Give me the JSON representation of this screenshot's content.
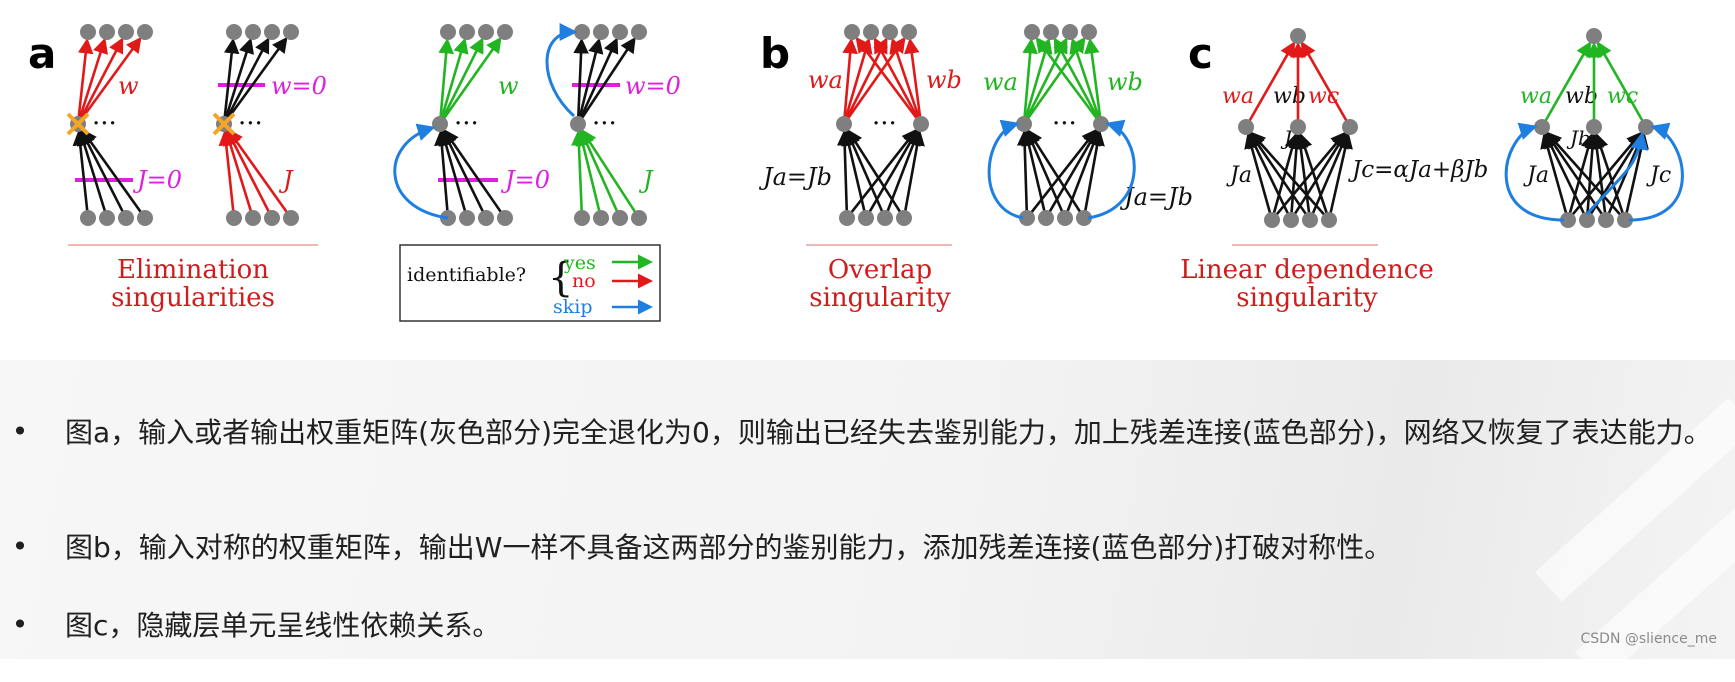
{
  "figure": {
    "panel_a": {
      "letter": "a",
      "label_w": "w",
      "label_w0": "w=0",
      "label_J0": "J=0",
      "label_J": "J",
      "label_w_green": "w",
      "label_w0_green": "w=0",
      "label_J0_green": "J=0",
      "label_J_green": "J",
      "caption_line1": "Elimination",
      "caption_line2": "singularities"
    },
    "legend": {
      "prefix": "identifiable?",
      "yes": "yes",
      "no": "no",
      "skip": "skip"
    },
    "panel_b": {
      "letter": "b",
      "label_wa": "wa",
      "label_wb": "wb",
      "label_eq": "Ja=Jb",
      "label_wa_green": "wa",
      "label_wb_green": "wb",
      "label_eq_right": "Ja=Jb",
      "caption_line1": "Overlap",
      "caption_line2": "singularity"
    },
    "panel_c": {
      "letter": "c",
      "label_wa": "wa",
      "label_wb": "wb",
      "label_wc": "wc",
      "label_Ja": "Ja",
      "label_Jb": "Jb",
      "label_eq": "Jc=αJa+βJb",
      "label_wa_green": "wa",
      "label_wb_green": "wb",
      "label_wc_green": "wc",
      "label_Ja_right": "Ja",
      "label_Jb_right": "Jb",
      "label_Jc_right": "Jc",
      "caption_line1": "Linear dependence",
      "caption_line2": "singularity"
    },
    "colors": {
      "red": "#e11919",
      "green": "#22b522",
      "blue": "#1f7fe0",
      "magenta": "#e01ee0",
      "black": "#111111",
      "node": "#7f7f7f",
      "orange": "#f5a623",
      "caption": "#d01c1c"
    }
  },
  "bullets": [
    {
      "marker": "•",
      "text": "图a，输入或者输出权重矩阵(灰色部分)完全退化为0，则输出已经失去鉴别能力，加上残差连接(蓝色部分)，网络又恢复了表达能力。"
    },
    {
      "marker": "•",
      "text": "图b，输入对称的权重矩阵，输出W一样不具备这两部分的鉴别能力，添加残差连接(蓝色部分)打破对称性。"
    },
    {
      "marker": "•",
      "text": "图c，隐藏层单元呈线性依赖关系。"
    }
  ],
  "watermark": "CSDN @slience_me"
}
